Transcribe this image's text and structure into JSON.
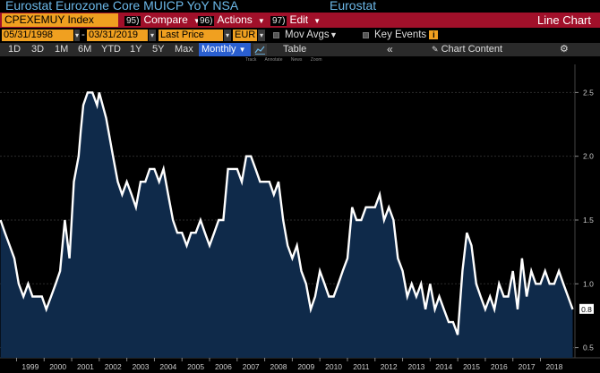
{
  "title": {
    "main": "Eurostat Eurozone Core MUICP YoY NSA",
    "source": "Eurostat"
  },
  "toolbar": {
    "ticker": "CPEXEMUY Index",
    "compare": {
      "num": "95)",
      "label": "Compare"
    },
    "actions": {
      "num": "96)",
      "label": "Actions"
    },
    "edit": {
      "num": "97)",
      "label": "Edit"
    },
    "chart_type": "Line Chart"
  },
  "settings": {
    "start_date": "05/31/1998",
    "dash": "-",
    "end_date": "03/31/2019",
    "field": "Last Price",
    "currency": "EUR",
    "mov_avgs": "Mov Avgs",
    "key_events": "Key Events",
    "info": "i"
  },
  "ranges": [
    "1D",
    "3D",
    "1M",
    "6M",
    "YTD",
    "1Y",
    "5Y",
    "Max"
  ],
  "period": "Monthly",
  "table_label": "Table",
  "chart_content_label": "Chart Content",
  "annotation_tools": [
    "Track",
    "Annotate",
    "News",
    "Zoom"
  ],
  "colors": {
    "series_line": "#ffffff",
    "area_fill": "#0f2a4a",
    "accent_orange": "#f0a020",
    "toolbar_red": "#a1102a",
    "title_blue": "#6cb8e8"
  },
  "chart_data": {
    "type": "area",
    "xlabel": "",
    "ylabel": "",
    "xlim": [
      1998.4,
      2019.25
    ],
    "ylim": [
      0.42,
      2.72
    ],
    "y_ticks": [
      0.5,
      1.0,
      1.5,
      2.0,
      2.5
    ],
    "y_tick_labels": [
      "0.5",
      "1.0",
      "1.5",
      "2.0",
      "2.5"
    ],
    "x_ticks": [
      1999,
      2000,
      2001,
      2002,
      2003,
      2004,
      2005,
      2006,
      2007,
      2008,
      2009,
      2010,
      2011,
      2012,
      2013,
      2014,
      2015,
      2016,
      2017,
      2018
    ],
    "x_tick_labels": [
      "1999",
      "2000",
      "2001",
      "2002",
      "2003",
      "2004",
      "2005",
      "2006",
      "2007",
      "2008",
      "2009",
      "2010",
      "2011",
      "2012",
      "2013",
      "2014",
      "2015",
      "2016",
      "2017",
      "2018"
    ],
    "last_value_label": "0.8",
    "grid": true,
    "x": [
      1998.42,
      1998.58,
      1998.75,
      1998.92,
      1999.08,
      1999.25,
      1999.42,
      1999.58,
      1999.75,
      1999.92,
      2000.08,
      2000.25,
      2000.42,
      2000.58,
      2000.75,
      2000.92,
      2001.08,
      2001.25,
      2001.33,
      2001.42,
      2001.58,
      2001.75,
      2001.92,
      2002.0,
      2002.25,
      2002.5,
      2002.67,
      2002.83,
      2003.0,
      2003.17,
      2003.33,
      2003.5,
      2003.67,
      2003.83,
      2004.0,
      2004.17,
      2004.33,
      2004.5,
      2004.67,
      2004.83,
      2005.0,
      2005.17,
      2005.33,
      2005.5,
      2005.67,
      2005.83,
      2006.0,
      2006.17,
      2006.33,
      2006.5,
      2006.67,
      2006.83,
      2007.0,
      2007.17,
      2007.33,
      2007.5,
      2007.67,
      2007.83,
      2008.0,
      2008.17,
      2008.33,
      2008.5,
      2008.67,
      2008.83,
      2009.0,
      2009.17,
      2009.33,
      2009.5,
      2009.67,
      2009.83,
      2010.0,
      2010.17,
      2010.33,
      2010.5,
      2010.67,
      2010.83,
      2011.0,
      2011.17,
      2011.33,
      2011.5,
      2011.67,
      2011.83,
      2012.0,
      2012.17,
      2012.33,
      2012.5,
      2012.67,
      2012.83,
      2013.0,
      2013.17,
      2013.33,
      2013.5,
      2013.67,
      2013.83,
      2014.0,
      2014.17,
      2014.33,
      2014.5,
      2014.67,
      2014.83,
      2015.0,
      2015.17,
      2015.33,
      2015.5,
      2015.67,
      2015.83,
      2016.0,
      2016.17,
      2016.33,
      2016.5,
      2016.67,
      2016.83,
      2017.0,
      2017.17,
      2017.33,
      2017.5,
      2017.67,
      2017.83,
      2018.0,
      2018.17,
      2018.33,
      2018.5,
      2018.67,
      2018.83,
      2019.0,
      2019.17
    ],
    "values": [
      1.5,
      1.4,
      1.3,
      1.2,
      1.0,
      0.9,
      1.0,
      0.9,
      0.9,
      0.9,
      0.8,
      0.9,
      1.0,
      1.1,
      1.5,
      1.2,
      1.8,
      2.0,
      2.2,
      2.4,
      2.5,
      2.5,
      2.4,
      2.5,
      2.3,
      2.0,
      1.8,
      1.7,
      1.8,
      1.7,
      1.6,
      1.8,
      1.8,
      1.9,
      1.9,
      1.8,
      1.9,
      1.7,
      1.5,
      1.4,
      1.4,
      1.3,
      1.4,
      1.4,
      1.5,
      1.4,
      1.3,
      1.4,
      1.5,
      1.5,
      1.9,
      1.9,
      1.9,
      1.8,
      2.0,
      2.0,
      1.9,
      1.8,
      1.8,
      1.8,
      1.7,
      1.8,
      1.5,
      1.3,
      1.2,
      1.3,
      1.1,
      1.0,
      0.8,
      0.9,
      1.1,
      1.0,
      0.9,
      0.9,
      1.0,
      1.1,
      1.2,
      1.6,
      1.5,
      1.5,
      1.6,
      1.6,
      1.6,
      1.7,
      1.5,
      1.6,
      1.5,
      1.2,
      1.1,
      0.9,
      1.0,
      0.9,
      1.0,
      0.8,
      1.0,
      0.8,
      0.9,
      0.8,
      0.7,
      0.7,
      0.6,
      1.1,
      1.4,
      1.3,
      1.0,
      0.9,
      0.8,
      0.9,
      0.8,
      1.0,
      0.9,
      0.9,
      1.1,
      0.8,
      1.2,
      0.9,
      1.1,
      1.0,
      1.0,
      1.1,
      1.0,
      1.0,
      1.1,
      1.0,
      0.9,
      0.8
    ]
  }
}
